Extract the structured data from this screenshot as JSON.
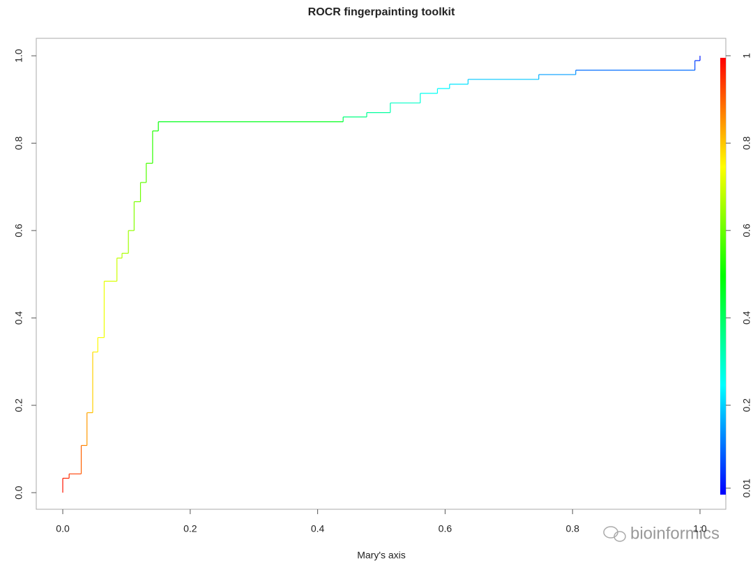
{
  "chart_data": {
    "type": "line",
    "title": "ROCR fingerpainting toolkit",
    "xlabel": "Mary's axis",
    "watermark": "bioinformics",
    "x": [
      0,
      0,
      0.01,
      0.01,
      0.029,
      0.029,
      0.038,
      0.038,
      0.047,
      0.047,
      0.055,
      0.055,
      0.065,
      0.065,
      0.085,
      0.085,
      0.093,
      0.093,
      0.103,
      0.103,
      0.112,
      0.112,
      0.122,
      0.122,
      0.131,
      0.131,
      0.141,
      0.141,
      0.15,
      0.15,
      0.44,
      0.44,
      0.477,
      0.477,
      0.514,
      0.514,
      0.561,
      0.561,
      0.588,
      0.588,
      0.607,
      0.607,
      0.636,
      0.636,
      0.747,
      0.747,
      0.805,
      0.805,
      0.992,
      0.992,
      1,
      1
    ],
    "series": [
      {
        "values": [
          0,
          0.033,
          0.033,
          0.043,
          0.043,
          0.108,
          0.108,
          0.183,
          0.183,
          0.322,
          0.322,
          0.355,
          0.355,
          0.484,
          0.484,
          0.537,
          0.537,
          0.548,
          0.548,
          0.6,
          0.6,
          0.666,
          0.666,
          0.71,
          0.71,
          0.754,
          0.754,
          0.828,
          0.828,
          0.849,
          0.849,
          0.86,
          0.86,
          0.87,
          0.87,
          0.892,
          0.892,
          0.914,
          0.914,
          0.925,
          0.925,
          0.935,
          0.935,
          0.946,
          0.946,
          0.957,
          0.957,
          0.967,
          0.967,
          0.989,
          0.989,
          1
        ],
        "cutoffs": [
          0.99,
          0.97,
          0.96,
          0.95,
          0.93,
          0.88,
          0.87,
          0.83,
          0.82,
          0.77,
          0.76,
          0.75,
          0.74,
          0.72,
          0.71,
          0.69,
          0.68,
          0.67,
          0.66,
          0.65,
          0.64,
          0.62,
          0.61,
          0.6,
          0.59,
          0.57,
          0.56,
          0.53,
          0.52,
          0.5,
          0.45,
          0.38,
          0.37,
          0.35,
          0.34,
          0.31,
          0.3,
          0.27,
          0.26,
          0.25,
          0.24,
          0.23,
          0.22,
          0.2,
          0.19,
          0.16,
          0.15,
          0.13,
          0.08,
          0.06,
          0.04,
          0.01
        ]
      }
    ],
    "xlim": [
      -0.0416,
      1.0405
    ],
    "ylim": [
      -0.038,
      1.04
    ],
    "xticks": [
      {
        "value": 0,
        "label": "0.0"
      },
      0.2,
      0.4,
      0.6,
      0.8,
      {
        "value": 1,
        "label": "1.0"
      }
    ],
    "yticks": [
      {
        "value": 0,
        "label": "0.0"
      },
      0.2,
      0.4,
      0.6,
      0.8,
      {
        "value": 1,
        "label": "1.0"
      }
    ],
    "colorkey_lim": [
      0,
      1
    ],
    "colorkey_ticks": [
      0.01,
      0.2,
      0.4,
      0.6,
      0.8,
      1
    ]
  }
}
